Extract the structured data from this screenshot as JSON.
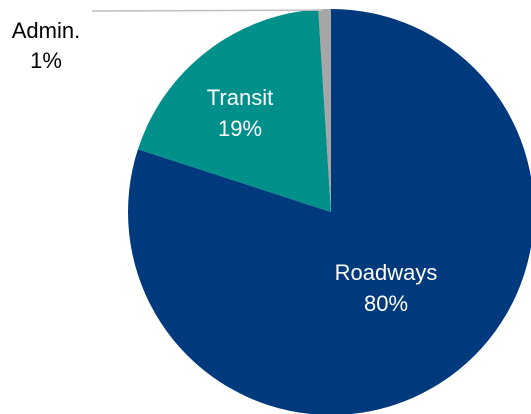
{
  "chart_data": {
    "type": "pie",
    "slices": [
      {
        "label": "Roadways",
        "percent_label": "80%",
        "value": 80,
        "color": "#003a7d"
      },
      {
        "label": "Transit",
        "percent_label": "19%",
        "value": 19,
        "color": "#00908b"
      },
      {
        "label": "Admin.",
        "percent_label": "1%",
        "value": 1,
        "color": "#a6a6a6"
      }
    ],
    "label_colors": {
      "inside": "#ffffff",
      "outside": "#000000"
    },
    "leader_line_color": "#bfbfbf"
  }
}
